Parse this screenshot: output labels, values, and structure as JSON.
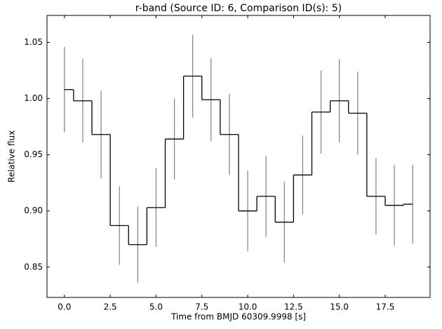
{
  "chart_data": {
    "type": "step_errorbar",
    "title": "r-band (Source ID: 6, Comparison ID(s): 5)",
    "x_label": "Time from BMJD 60309.9998 [s]",
    "y_label": "Relative flux",
    "x": [
      0,
      1,
      2,
      3,
      4,
      5,
      6,
      7,
      8,
      9,
      10,
      11,
      12,
      13,
      14,
      15,
      16,
      17,
      18,
      19
    ],
    "values": [
      1.008,
      0.998,
      0.968,
      0.887,
      0.87,
      0.903,
      0.964,
      1.02,
      0.999,
      0.968,
      0.9,
      0.913,
      0.89,
      0.932,
      0.988,
      0.998,
      0.987,
      0.913,
      0.905,
      0.906
    ],
    "errors": [
      0.038,
      0.037,
      0.039,
      0.035,
      0.034,
      0.035,
      0.036,
      0.037,
      0.037,
      0.036,
      0.036,
      0.036,
      0.036,
      0.035,
      0.037,
      0.037,
      0.037,
      0.034,
      0.036,
      0.035
    ],
    "color": "#000000",
    "error_color": "#808080",
    "xlim": [
      -0.95,
      19.95
    ],
    "ylim": [
      0.823,
      1.074
    ],
    "xticks": [
      {
        "value": 0,
        "label": "0.0"
      },
      2.5,
      {
        "value": 5,
        "label": "5.0"
      },
      7.5,
      {
        "value": 10,
        "label": "10.0"
      },
      12.5,
      {
        "value": 15,
        "label": "15.0"
      },
      17.5
    ],
    "yticks": [
      0.85,
      {
        "value": 0.9,
        "label": "0.90"
      },
      0.95,
      {
        "value": 1.0,
        "label": "1.00"
      },
      1.05
    ]
  }
}
